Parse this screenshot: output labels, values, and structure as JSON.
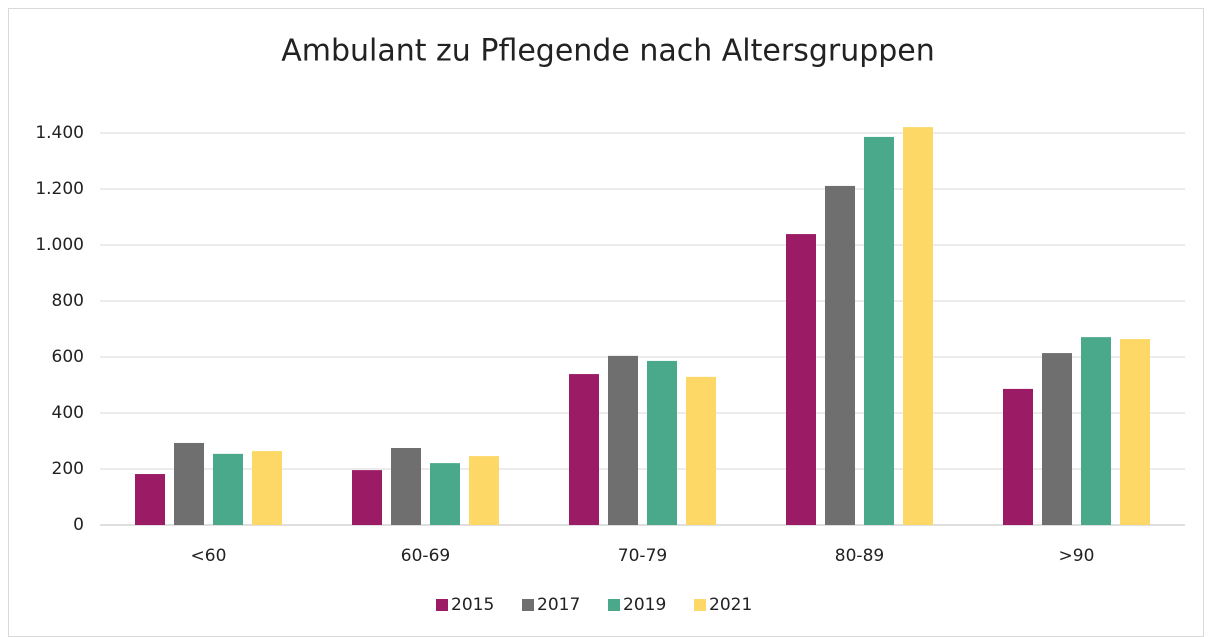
{
  "chart_data": {
    "type": "bar",
    "title": "Ambulant zu Pflegende nach Altersgruppen",
    "categories": [
      "<60",
      "60-69",
      "70-79",
      "80-89",
      ">90"
    ],
    "series": [
      {
        "name": "2015",
        "color": "#9b1b65",
        "values": [
          182,
          196,
          539,
          1039,
          486
        ]
      },
      {
        "name": "2017",
        "color": "#6f6f6f",
        "values": [
          293,
          275,
          604,
          1211,
          614
        ]
      },
      {
        "name": "2019",
        "color": "#4aa98a",
        "values": [
          254,
          221,
          586,
          1386,
          671
        ]
      },
      {
        "name": "2021",
        "color": "#fdd866",
        "values": [
          264,
          246,
          529,
          1421,
          664
        ]
      }
    ],
    "ylim": [
      0,
      1400
    ],
    "yticks": [
      0,
      200,
      400,
      600,
      800,
      {
        "value": 1000,
        "label": "1.000"
      },
      {
        "value": 1200,
        "label": "1.200"
      },
      {
        "value": 1400,
        "label": "1.400"
      }
    ],
    "grid": true,
    "legend": "bottom"
  }
}
